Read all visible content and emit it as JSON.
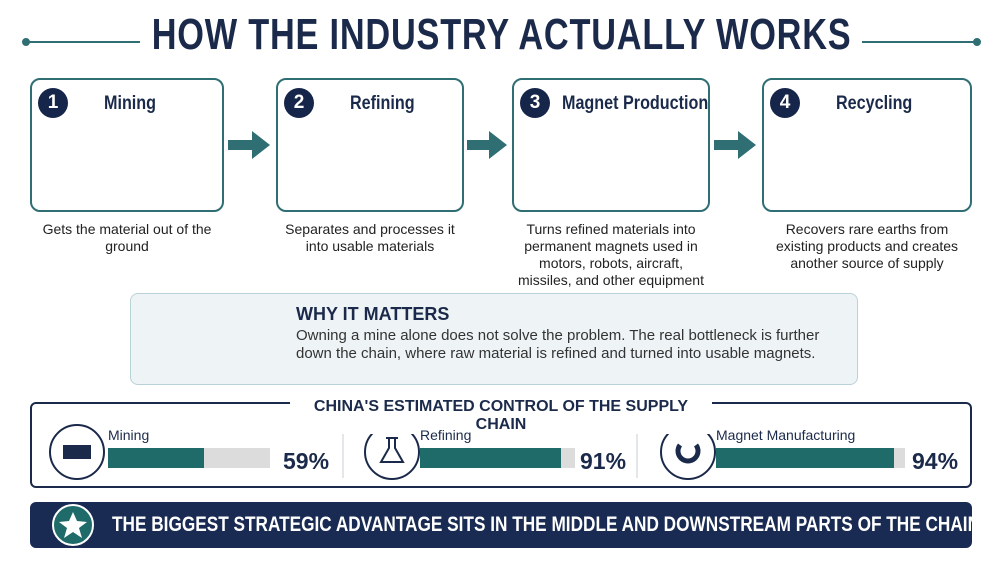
{
  "header": {
    "title": "HOW THE INDUSTRY ACTUALLY WORKS"
  },
  "steps": [
    {
      "number": 1,
      "title": "Mining",
      "description": "Gets the material out of the ground"
    },
    {
      "number": 2,
      "title": "Refining",
      "description": "Separates and processes it into usable materials"
    },
    {
      "number": 3,
      "title": "Magnet Production",
      "description": "Turns refined materials into permanent magnets used in motors, robots, aircraft, missiles, and other equipment"
    },
    {
      "number": 4,
      "title": "Recycling",
      "description": "Recovers rare earths from existing products and creates another source of supply"
    }
  ],
  "why": {
    "title": "WHY IT MATTERS",
    "text": "Owning a mine alone does not solve the problem. The real bottleneck is further down the chain, where raw material is refined and turned into usable magnets."
  },
  "control": {
    "title": "CHINA'S ESTIMATED CONTROL OF THE SUPPLY CHAIN",
    "items": [
      {
        "label": "Mining",
        "value": 59,
        "value_label": "59%"
      },
      {
        "label": "Refining",
        "value": 91,
        "value_label": "91%"
      },
      {
        "label": "Magnet Manufacturing",
        "value": 94,
        "value_label": "94%"
      }
    ]
  },
  "footer": {
    "text": "THE BIGGEST STRATEGIC ADVANTAGE SITS IN THE MIDDLE AND DOWNSTREAM PARTS OF THE CHAIN."
  }
}
